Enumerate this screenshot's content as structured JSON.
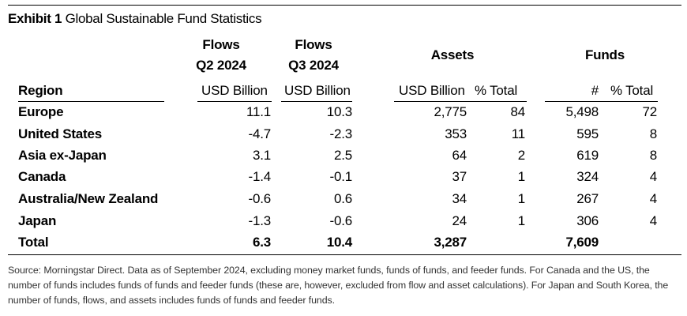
{
  "exhibit": {
    "label": "Exhibit 1",
    "title": "Global Sustainable Fund Statistics"
  },
  "headers": {
    "flows_q2_line1": "Flows",
    "flows_q2_line2": "Q2 2024",
    "flows_q3_line1": "Flows",
    "flows_q3_line2": "Q3 2024",
    "assets": "Assets",
    "funds": "Funds",
    "region": "Region",
    "usd_billion_q2": "USD Billion",
    "usd_billion_q3": "USD Billion",
    "usd_billion_assets": "USD Billion",
    "pct_total_assets": "% Total",
    "fund_count": "#",
    "pct_total_funds": "% Total"
  },
  "rows": [
    {
      "region": "Europe",
      "flows_q2": "11.1",
      "flows_q3": "10.3",
      "assets": "2,775",
      "assets_pct": "84",
      "funds": "5,498",
      "funds_pct": "72"
    },
    {
      "region": "United States",
      "flows_q2": "-4.7",
      "flows_q3": "-2.3",
      "assets": "353",
      "assets_pct": "11",
      "funds": "595",
      "funds_pct": "8"
    },
    {
      "region": "Asia ex-Japan",
      "flows_q2": "3.1",
      "flows_q3": "2.5",
      "assets": "64",
      "assets_pct": "2",
      "funds": "619",
      "funds_pct": "8"
    },
    {
      "region": "Canada",
      "flows_q2": "-1.4",
      "flows_q3": "-0.1",
      "assets": "37",
      "assets_pct": "1",
      "funds": "324",
      "funds_pct": "4"
    },
    {
      "region": "Australia/New Zealand",
      "flows_q2": "-0.6",
      "flows_q3": "0.6",
      "assets": "34",
      "assets_pct": "1",
      "funds": "267",
      "funds_pct": "4"
    },
    {
      "region": "Japan",
      "flows_q2": "-1.3",
      "flows_q3": "-0.6",
      "assets": "24",
      "assets_pct": "1",
      "funds": "306",
      "funds_pct": "4"
    }
  ],
  "total": {
    "region": "Total",
    "flows_q2": "6.3",
    "flows_q3": "10.4",
    "assets": "3,287",
    "funds": "7,609"
  },
  "footnote": "Source: Morningstar Direct. Data as of September 2024, excluding money market funds, funds of funds, and feeder funds. For Canada and the US, the number of funds includes funds of funds and feeder funds (these are, however, excluded from flow and asset calculations). For Japan and South Korea, the number of funds, flows, and assets includes funds of funds and feeder funds."
}
